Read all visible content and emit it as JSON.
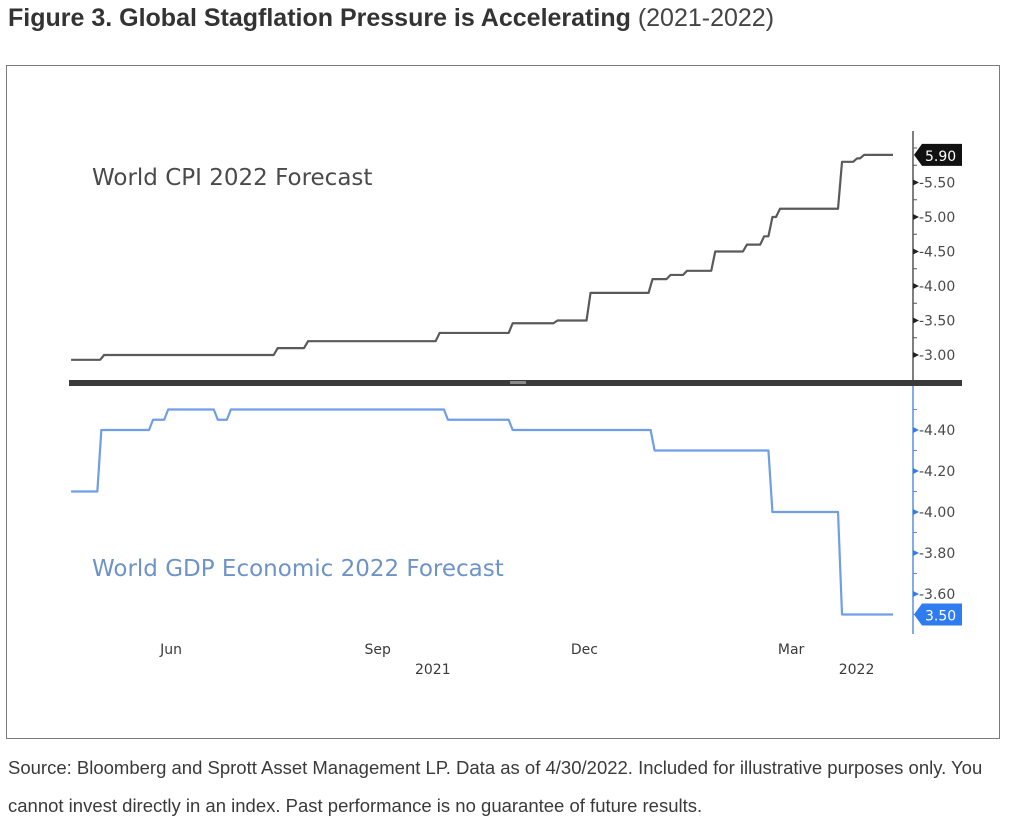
{
  "figure": {
    "title_bold": "Figure 3. Global Stagflation Pressure is Accelerating",
    "title_light": "(2021-2022)",
    "source_note": "Source: Bloomberg and Sprott Asset Management LP. Data as of 4/30/2022. Included for illustrative purposes only. You cannot invest directly in an index. Past performance is no guarantee of future results."
  },
  "chart_data": [
    {
      "type": "line",
      "title": "World CPI 2022 Forecast",
      "panel": "top",
      "line_color": "#5a5a5a",
      "xlabel": "",
      "ylabel": "",
      "y_axis_side": "right",
      "ylim": [
        2.85,
        6.05
      ],
      "y_ticks": [
        "5.50",
        "5.00",
        "4.50",
        "4.00",
        "3.50",
        "3.00"
      ],
      "last_value_label": "5.90",
      "last_value_color": "#111111",
      "x_ticks": [
        {
          "label": "Jun",
          "year": "2021"
        },
        {
          "label": "Sep",
          "year": ""
        },
        {
          "label": "Dec",
          "year": ""
        },
        {
          "label": "Mar",
          "year": "2022"
        }
      ],
      "x_year_labels": [
        {
          "label": "2021",
          "at_month": 3.8
        },
        {
          "label": "2022",
          "at_month": 9.95
        }
      ],
      "x_range_months": [
        -1.45,
        10.45
      ],
      "step": true,
      "points": [
        {
          "m": -1.45,
          "v": 2.93
        },
        {
          "m": -1.0,
          "v": 3.0
        },
        {
          "m": 1.52,
          "v": 3.1
        },
        {
          "m": 1.96,
          "v": 3.2
        },
        {
          "m": 3.87,
          "v": 3.32
        },
        {
          "m": 4.93,
          "v": 3.46
        },
        {
          "m": 5.58,
          "v": 3.5
        },
        {
          "m": 6.06,
          "v": 3.9
        },
        {
          "m": 6.96,
          "v": 4.1
        },
        {
          "m": 7.22,
          "v": 4.16
        },
        {
          "m": 7.46,
          "v": 4.22
        },
        {
          "m": 7.87,
          "v": 4.5
        },
        {
          "m": 8.33,
          "v": 4.6
        },
        {
          "m": 8.58,
          "v": 4.72
        },
        {
          "m": 8.7,
          "v": 5.0
        },
        {
          "m": 8.81,
          "v": 5.12
        },
        {
          "m": 9.71,
          "v": 5.8
        },
        {
          "m": 9.93,
          "v": 5.85
        },
        {
          "m": 10.03,
          "v": 5.9
        },
        {
          "m": 10.45,
          "v": 5.9
        }
      ]
    },
    {
      "type": "line",
      "title": "World GDP Economic 2022 Forecast",
      "panel": "bottom",
      "line_color": "#6f9ee6",
      "xlabel": "",
      "ylabel": "",
      "y_axis_side": "right",
      "ylim": [
        3.45,
        4.55
      ],
      "y_ticks": [
        "4.40",
        "4.20",
        "4.00",
        "3.80",
        "3.60"
      ],
      "last_value_label": "3.50",
      "last_value_color": "#2f7bf0",
      "step": true,
      "points": [
        {
          "m": -1.45,
          "v": 4.1
        },
        {
          "m": -1.04,
          "v": 4.4
        },
        {
          "m": -0.29,
          "v": 4.45
        },
        {
          "m": -0.07,
          "v": 4.5
        },
        {
          "m": 0.65,
          "v": 4.45
        },
        {
          "m": 0.84,
          "v": 4.5
        },
        {
          "m": 3.99,
          "v": 4.45
        },
        {
          "m": 4.93,
          "v": 4.4
        },
        {
          "m": 6.99,
          "v": 4.3
        },
        {
          "m": 8.7,
          "v": 4.0
        },
        {
          "m": 9.71,
          "v": 3.5
        },
        {
          "m": 10.45,
          "v": 3.5
        }
      ]
    }
  ]
}
